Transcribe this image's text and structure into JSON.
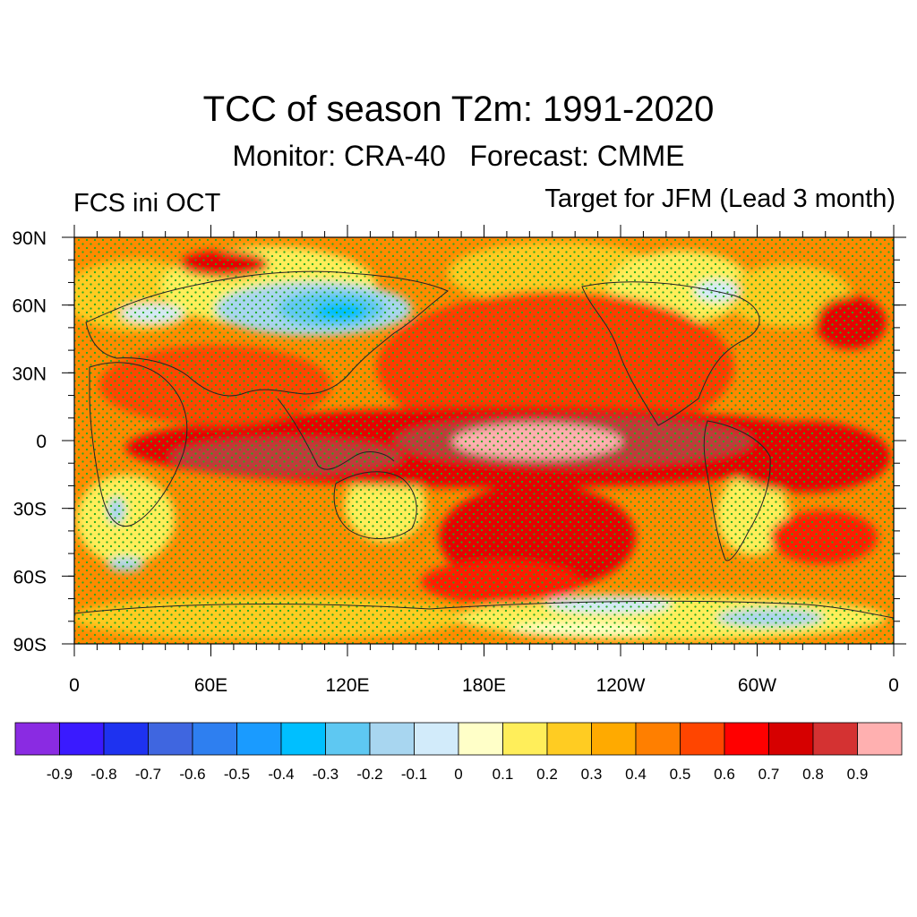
{
  "header": {
    "title": "TCC of season T2m: 1991-2020",
    "subtitle": "Monitor: CRA-40   Forecast: CMME",
    "left_label": "FCS ini OCT",
    "right_label": "Target for JFM (Lead 3 month)"
  },
  "map": {
    "lat_labels": [
      "90N",
      "60N",
      "30N",
      "0",
      "30S",
      "60S",
      "90S"
    ],
    "lon_labels": [
      "0",
      "60E",
      "120E",
      "180E",
      "120W",
      "60W",
      "0"
    ],
    "stipple_color": "#22aa22",
    "background_color": "#ff6a00"
  },
  "colorbar": {
    "colors": [
      "#8a2be2",
      "#3a1aff",
      "#1e32f0",
      "#3f66e0",
      "#2e7ff0",
      "#1a9bff",
      "#00bfff",
      "#5ec8f2",
      "#a8d6f0",
      "#d2ebfa",
      "#ffffc8",
      "#ffee5a",
      "#ffcc22",
      "#ffaa00",
      "#ff7f00",
      "#ff4500",
      "#ff0000",
      "#d60000",
      "#d43232",
      "#ffb0b0"
    ],
    "labels": [
      "-0.9",
      "-0.8",
      "-0.7",
      "-0.6",
      "-0.5",
      "-0.4",
      "-0.3",
      "-0.2",
      "-0.1",
      "0",
      "0.1",
      "0.2",
      "0.3",
      "0.4",
      "0.5",
      "0.6",
      "0.7",
      "0.8",
      "0.9"
    ]
  }
}
